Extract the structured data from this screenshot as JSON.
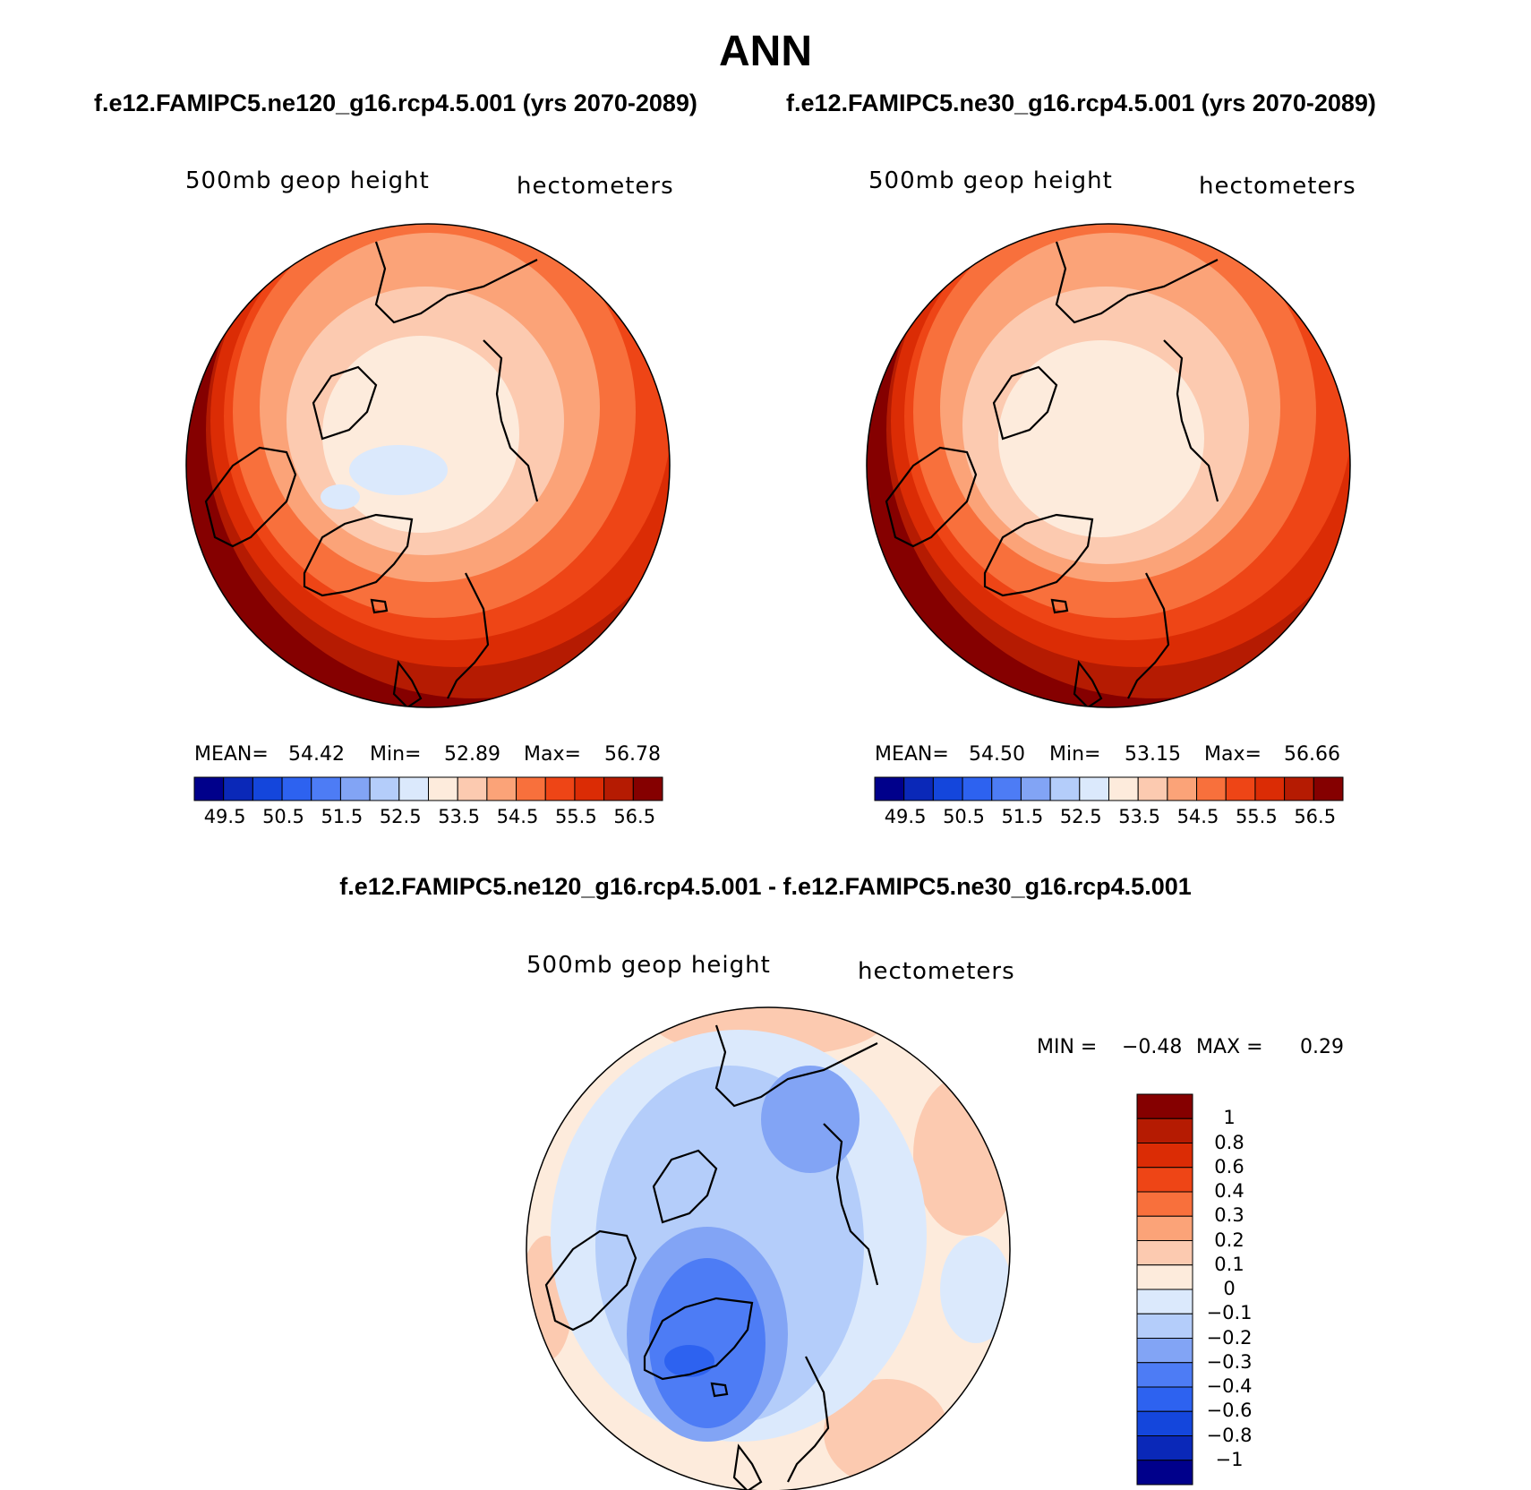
{
  "figure": {
    "title": "ANN",
    "left_case": "f.e12.FAMIPC5.ne120_g16.rcp4.5.001 (yrs 2070-2089)",
    "right_case": "f.e12.FAMIPC5.ne30_g16.rcp4.5.001 (yrs 2070-2089)",
    "diff_title": "f.e12.FAMIPC5.ne120_g16.rcp4.5.001 - f.e12.FAMIPC5.ne30_g16.rcp4.5.001"
  },
  "panels": [
    {
      "id": "left",
      "variable": "500mb geop height",
      "units": "hectometers",
      "stats": {
        "mean_label": "MEAN=",
        "mean": "54.42",
        "min_label": "Min=",
        "min": "52.89",
        "max_label": "Max=",
        "max": "56.78"
      }
    },
    {
      "id": "right",
      "variable": "500mb geop height",
      "units": "hectometers",
      "stats": {
        "mean_label": "MEAN=",
        "mean": "54.50",
        "min_label": "Min=",
        "min": "53.15",
        "max_label": "Max=",
        "max": "56.66"
      }
    },
    {
      "id": "diff",
      "variable": "500mb geop height",
      "units": "hectometers",
      "stats": {
        "min_label": "MIN =",
        "min": "−0.48",
        "max_label": "MAX =",
        "max": "0.29"
      }
    }
  ],
  "colorbars": {
    "abs_ticks": [
      "49.5",
      "50.5",
      "51.5",
      "52.5",
      "53.5",
      "54.5",
      "55.5",
      "56.5"
    ],
    "abs_colors": [
      "#00008b",
      "#0a28b8",
      "#1446dc",
      "#2d62f0",
      "#4d7cf5",
      "#82a4f5",
      "#b4cdfa",
      "#dbe9fc",
      "#fdebdc",
      "#fccab0",
      "#fba378",
      "#f8703c",
      "#ee4516",
      "#db2c05",
      "#b51b02",
      "#850000"
    ],
    "diff_ticks": [
      "1",
      "0.8",
      "0.6",
      "0.4",
      "0.3",
      "0.2",
      "0.1",
      "0",
      "−0.1",
      "−0.2",
      "−0.3",
      "−0.4",
      "−0.6",
      "−0.8",
      "−1"
    ],
    "diff_colors": [
      "#850000",
      "#b51b02",
      "#db2c05",
      "#ee4516",
      "#f8703c",
      "#fba378",
      "#fccab0",
      "#fdebdc",
      "#dbe9fc",
      "#b4cdfa",
      "#82a4f5",
      "#4d7cf5",
      "#2d62f0",
      "#1446dc",
      "#0a28b8",
      "#00008b"
    ]
  },
  "chart_data": [
    {
      "type": "heatmap",
      "title": "500mb geop height",
      "units": "hectometers",
      "case": "f.e12.FAMIPC5.ne120_g16.rcp4.5.001 (yrs 2070-2089)",
      "projection": "north polar stereographic",
      "contour_levels": [
        49.5,
        50,
        50.5,
        51,
        51.5,
        52,
        52.5,
        53,
        53.5,
        54,
        54.5,
        55,
        55.5,
        56,
        56.5
      ],
      "mean": 54.42,
      "min": 52.89,
      "max": 56.78
    },
    {
      "type": "heatmap",
      "title": "500mb geop height",
      "units": "hectometers",
      "case": "f.e12.FAMIPC5.ne30_g16.rcp4.5.001 (yrs 2070-2089)",
      "projection": "north polar stereographic",
      "contour_levels": [
        49.5,
        50,
        50.5,
        51,
        51.5,
        52,
        52.5,
        53,
        53.5,
        54,
        54.5,
        55,
        55.5,
        56,
        56.5
      ],
      "mean": 54.5,
      "min": 53.15,
      "max": 56.66
    },
    {
      "type": "heatmap",
      "title": "500mb geop height",
      "units": "hectometers",
      "case": "f.e12.FAMIPC5.ne120_g16.rcp4.5.001 - f.e12.FAMIPC5.ne30_g16.rcp4.5.001",
      "projection": "north polar stereographic",
      "contour_levels": [
        -1,
        -0.8,
        -0.6,
        -0.4,
        -0.3,
        -0.2,
        -0.1,
        0,
        0.1,
        0.2,
        0.3,
        0.4,
        0.6,
        0.8,
        1
      ],
      "min": -0.48,
      "max": 0.29
    }
  ]
}
